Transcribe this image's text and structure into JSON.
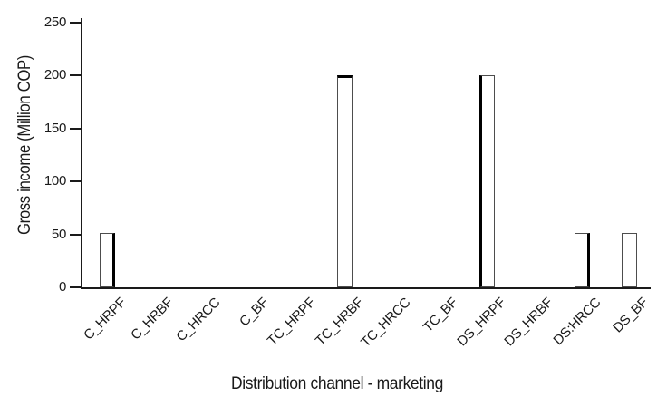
{
  "figure": {
    "background": "#ffffff",
    "text_color": "#1a1a1a",
    "axis_color": "#1a1a1a"
  },
  "chart_data": {
    "type": "bar",
    "title": "",
    "xlabel": "Distribution channel - marketing",
    "ylabel": "Gross income (Million COP)",
    "categories": [
      "C_HRPF",
      "C_HRBF",
      "C_HRCC",
      "C_BF",
      "TC_HRPF",
      "TC_HRBF",
      "TC_HRCC",
      "TC_BF",
      "DS_HRPF",
      "DS_HRBF",
      "DS:HRCC",
      "DS_BF"
    ],
    "values": [
      51,
      0,
      0,
      0,
      0,
      200,
      0,
      0,
      200,
      0,
      51,
      51
    ],
    "ylim": [
      0,
      250
    ],
    "yticks": [
      0,
      50,
      100,
      150,
      200,
      250
    ],
    "grid": false,
    "legend": "none",
    "bar_fill": "#ffffff",
    "bar_outline": "#4d4d4d",
    "bar_accent_color": "#000000",
    "thick_edges": [
      "right",
      null,
      null,
      null,
      null,
      "top",
      null,
      null,
      "left",
      null,
      "right",
      null
    ]
  }
}
